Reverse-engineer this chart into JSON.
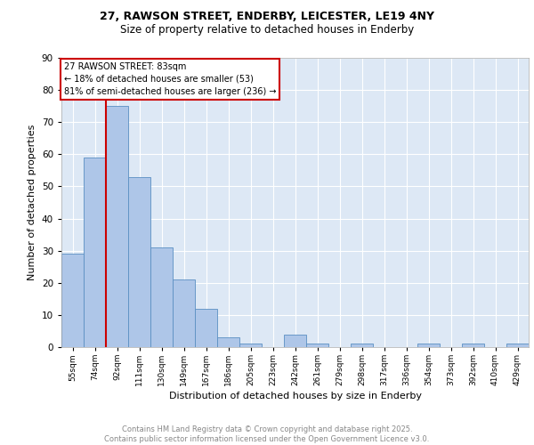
{
  "title1": "27, RAWSON STREET, ENDERBY, LEICESTER, LE19 4NY",
  "title2": "Size of property relative to detached houses in Enderby",
  "xlabel": "Distribution of detached houses by size in Enderby",
  "ylabel": "Number of detached properties",
  "categories": [
    "55sqm",
    "74sqm",
    "92sqm",
    "111sqm",
    "130sqm",
    "149sqm",
    "167sqm",
    "186sqm",
    "205sqm",
    "223sqm",
    "242sqm",
    "261sqm",
    "279sqm",
    "298sqm",
    "317sqm",
    "336sqm",
    "354sqm",
    "373sqm",
    "392sqm",
    "410sqm",
    "429sqm"
  ],
  "values": [
    29,
    59,
    75,
    53,
    31,
    21,
    12,
    3,
    1,
    0,
    4,
    1,
    0,
    1,
    0,
    0,
    1,
    0,
    1,
    0,
    1
  ],
  "bar_color": "#aec6e8",
  "bar_edge_color": "#5a8fc2",
  "background_color": "#dde8f5",
  "grid_color": "#ffffff",
  "vline_x_idx": 1.5,
  "vline_color": "#cc0000",
  "annotation_text": "27 RAWSON STREET: 83sqm\n← 18% of detached houses are smaller (53)\n81% of semi-detached houses are larger (236) →",
  "annotation_box_color": "#ffffff",
  "annotation_box_edge": "#cc0000",
  "ylim": [
    0,
    90
  ],
  "yticks": [
    0,
    10,
    20,
    30,
    40,
    50,
    60,
    70,
    80,
    90
  ],
  "footer": "Contains HM Land Registry data © Crown copyright and database right 2025.\nContains public sector information licensed under the Open Government Licence v3.0.",
  "footer_color": "#888888",
  "title1_fontsize": 9,
  "title2_fontsize": 8.5
}
